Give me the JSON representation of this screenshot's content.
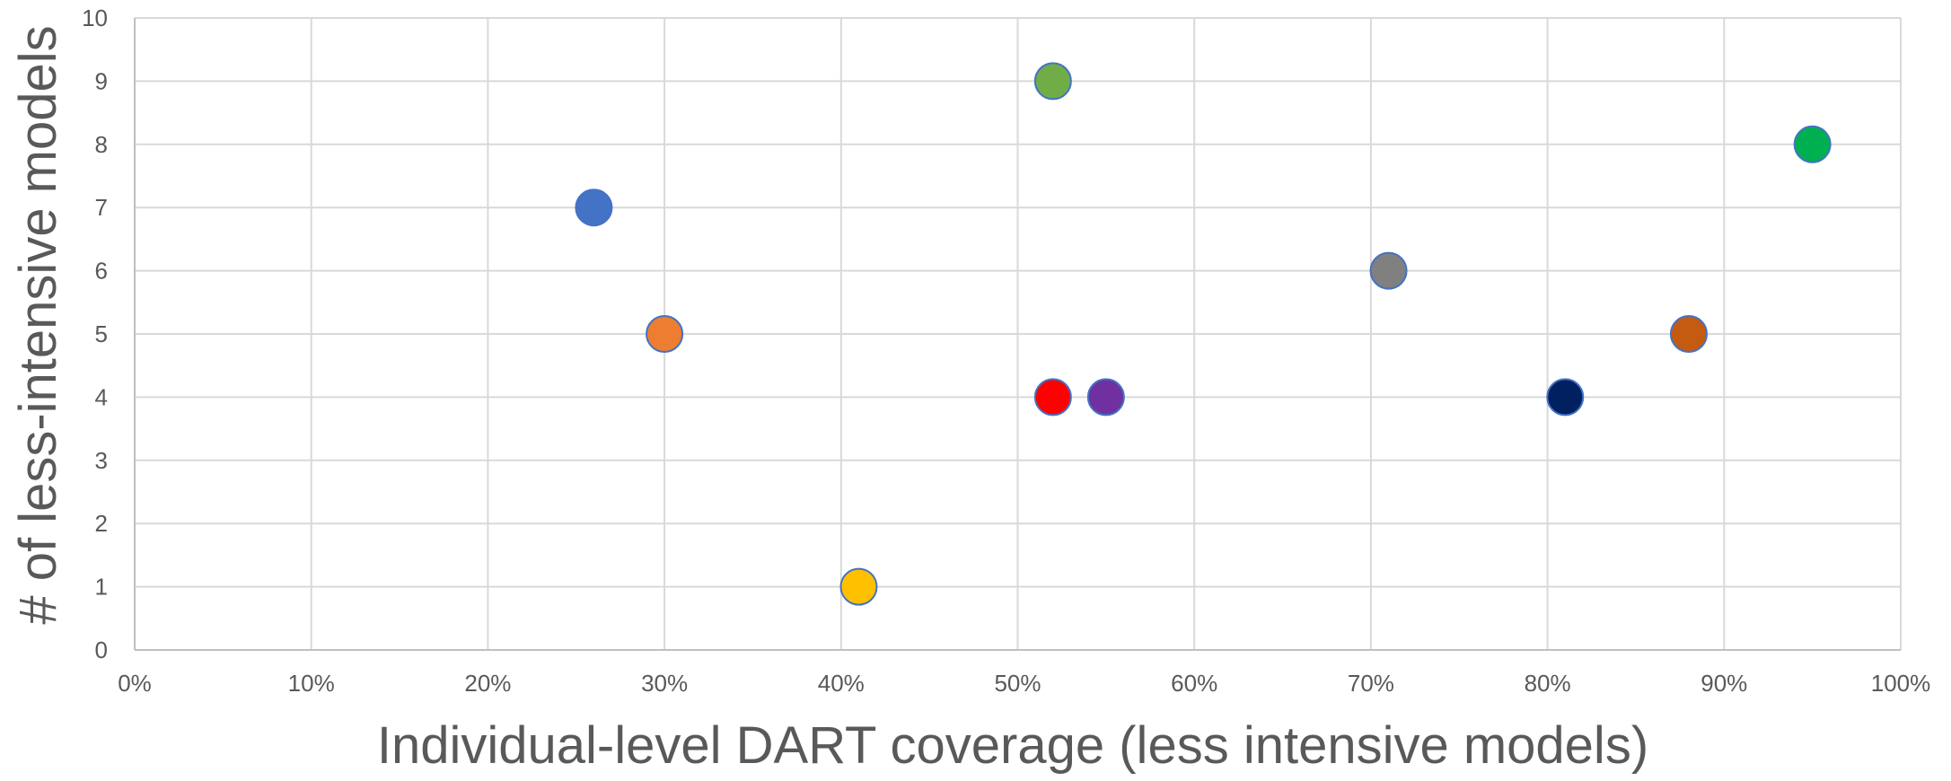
{
  "chart_data": {
    "type": "scatter",
    "title": "",
    "xlabel": "Individual-level DART coverage (less intensive models)",
    "ylabel": "# of less-intensive models",
    "xlim": [
      0,
      1
    ],
    "ylim": [
      0,
      10
    ],
    "x_ticks": [
      0,
      0.1,
      0.2,
      0.3,
      0.4,
      0.5,
      0.6,
      0.7,
      0.8,
      0.9,
      1.0
    ],
    "x_tick_labels": [
      "0%",
      "10%",
      "20%",
      "30%",
      "40%",
      "50%",
      "60%",
      "70%",
      "80%",
      "90%",
      "100%"
    ],
    "y_ticks": [
      0,
      1,
      2,
      3,
      4,
      5,
      6,
      7,
      8,
      9,
      10
    ],
    "y_tick_labels": [
      "0",
      "1",
      "2",
      "3",
      "4",
      "5",
      "6",
      "7",
      "8",
      "9",
      "10"
    ],
    "grid": true,
    "legend": "none",
    "points": [
      {
        "x": 0.26,
        "y": 7,
        "color": "#4472C4"
      },
      {
        "x": 0.3,
        "y": 5,
        "color": "#ED7D31"
      },
      {
        "x": 0.41,
        "y": 1,
        "color": "#FFC000"
      },
      {
        "x": 0.52,
        "y": 9,
        "color": "#70AD47"
      },
      {
        "x": 0.52,
        "y": 4,
        "color": "#FF0000"
      },
      {
        "x": 0.55,
        "y": 4,
        "color": "#7030A0"
      },
      {
        "x": 0.71,
        "y": 6,
        "color": "#808080"
      },
      {
        "x": 0.81,
        "y": 4,
        "color": "#002060"
      },
      {
        "x": 0.88,
        "y": 5,
        "color": "#C55A11"
      },
      {
        "x": 0.95,
        "y": 8,
        "color": "#00B050"
      }
    ],
    "marker_outline_color": "#4472C4",
    "gridline_color": "#D9D9D9",
    "axis_line_color": "#BFBFBF"
  }
}
